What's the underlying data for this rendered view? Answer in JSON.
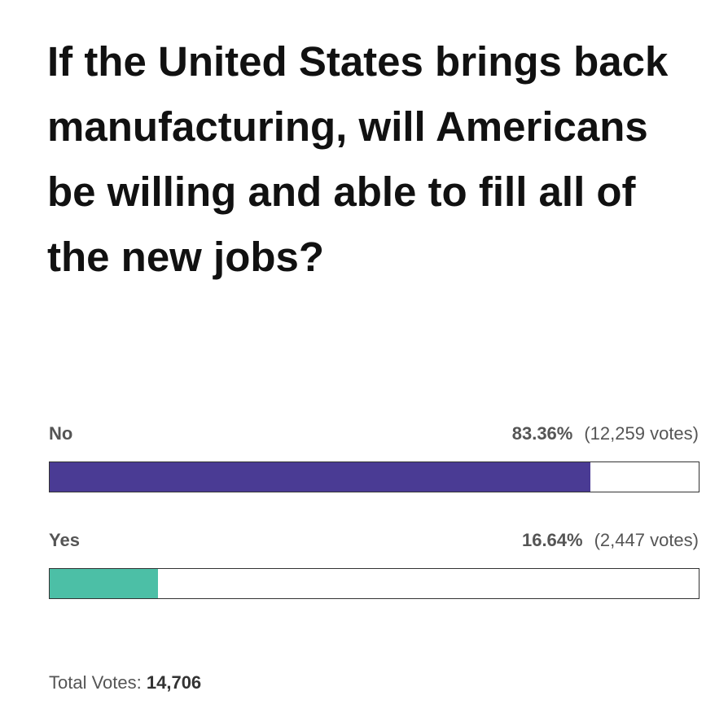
{
  "chart_data": {
    "type": "bar",
    "orientation": "horizontal",
    "title": "If the United States brings back manufacturing, will Americans be willing and able to fill all of the new jobs?",
    "categories": [
      "No",
      "Yes"
    ],
    "values": [
      83.36,
      16.64
    ],
    "value_labels": [
      "83.36%",
      "16.64%"
    ],
    "votes": [
      12259,
      2447
    ],
    "vote_labels": [
      "(12,259 votes)",
      "(2,447 votes)"
    ],
    "colors": [
      "#4a3b94",
      "#4cbfa6"
    ],
    "xlim": [
      0,
      100
    ],
    "total_caption": "Total Votes:",
    "total_votes": {
      "value": 14706,
      "label": "14,706"
    }
  }
}
